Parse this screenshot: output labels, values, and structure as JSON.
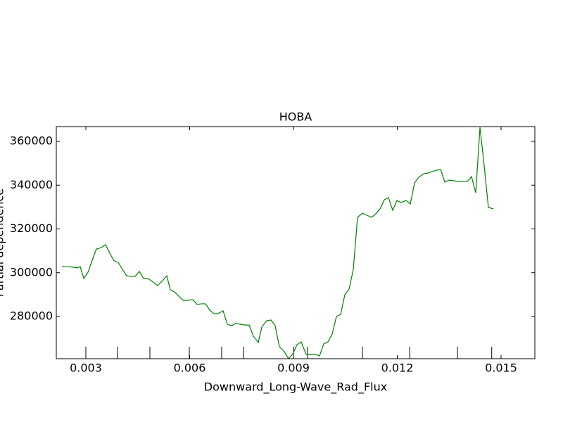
{
  "chart_data": {
    "type": "line",
    "title": "HOBA",
    "xlabel": "Downward_Long-Wave_Rad_Flux",
    "ylabel": "Partial dependence",
    "x": [
      0.002308,
      0.002471,
      0.002634,
      0.002756,
      0.002837,
      0.002939,
      0.003061,
      0.003183,
      0.003305,
      0.003447,
      0.00357,
      0.003692,
      0.003814,
      0.003936,
      0.004058,
      0.00418,
      0.004302,
      0.004424,
      0.004546,
      0.004668,
      0.00479,
      0.004912,
      0.005075,
      0.005217,
      0.005339,
      0.005441,
      0.005563,
      0.005685,
      0.005807,
      0.005949,
      0.006092,
      0.006214,
      0.006336,
      0.006458,
      0.00658,
      0.006702,
      0.006824,
      0.006966,
      0.007088,
      0.00721,
      0.007332,
      0.007454,
      0.007597,
      0.007719,
      0.007841,
      0.007983,
      0.008085,
      0.008227,
      0.008349,
      0.008471,
      0.008593,
      0.008736,
      0.008858,
      0.00898,
      0.009102,
      0.009224,
      0.009366,
      0.009488,
      0.009631,
      0.009753,
      0.009875,
      0.009997,
      0.010119,
      0.010241,
      0.010363,
      0.010485,
      0.010607,
      0.010729,
      0.010851,
      0.010994,
      0.011116,
      0.011258,
      0.01138,
      0.011502,
      0.011624,
      0.011746,
      0.011868,
      0.01199,
      0.012112,
      0.012255,
      0.012377,
      0.012499,
      0.012621,
      0.012763,
      0.012885,
      0.013007,
      0.013129,
      0.013251,
      0.013373,
      0.013495,
      0.013638,
      0.01376,
      0.013902,
      0.014024,
      0.014146,
      0.014268,
      0.01439,
      0.014512,
      0.014634,
      0.014777
    ],
    "series": [
      {
        "color": "#008000",
        "values": [
          302800,
          302800,
          302500,
          302200,
          302800,
          297400,
          300200,
          305700,
          310800,
          311500,
          312800,
          308900,
          305400,
          304700,
          301500,
          298600,
          298300,
          298300,
          300600,
          297400,
          297400,
          296100,
          294100,
          296400,
          298600,
          292200,
          291200,
          289300,
          287400,
          287400,
          287700,
          285500,
          285800,
          285800,
          282900,
          281300,
          281300,
          282600,
          276500,
          275800,
          276800,
          276500,
          276100,
          276100,
          271000,
          268100,
          275200,
          278100,
          278400,
          275800,
          266200,
          263900,
          260700,
          263000,
          267100,
          268400,
          262700,
          262700,
          262700,
          262000,
          267500,
          268400,
          272000,
          280000,
          281000,
          290000,
          292500,
          301500,
          325300,
          327200,
          326300,
          325300,
          326900,
          329200,
          333300,
          334300,
          328500,
          333000,
          332100,
          333000,
          331400,
          341000,
          343600,
          345200,
          345500,
          346200,
          346800,
          347200,
          341400,
          342300,
          342000,
          341700,
          341700,
          341700,
          343900,
          336500,
          366400,
          348800,
          329800,
          329200
        ]
      }
    ],
    "deciles": [
      0.003,
      0.003915,
      0.004851,
      0.00599,
      0.006925,
      0.00756,
      0.009,
      0.009407,
      0.010993,
      0.01236,
      0.01374,
      0.01473
    ],
    "xlim": [
      0.002146,
      0.015976
    ],
    "ylim": [
      260723,
      366747
    ],
    "xticks": [
      0.003,
      0.006,
      0.009,
      0.012,
      0.015
    ],
    "yticks": [
      280000,
      300000,
      320000,
      340000,
      360000
    ]
  }
}
